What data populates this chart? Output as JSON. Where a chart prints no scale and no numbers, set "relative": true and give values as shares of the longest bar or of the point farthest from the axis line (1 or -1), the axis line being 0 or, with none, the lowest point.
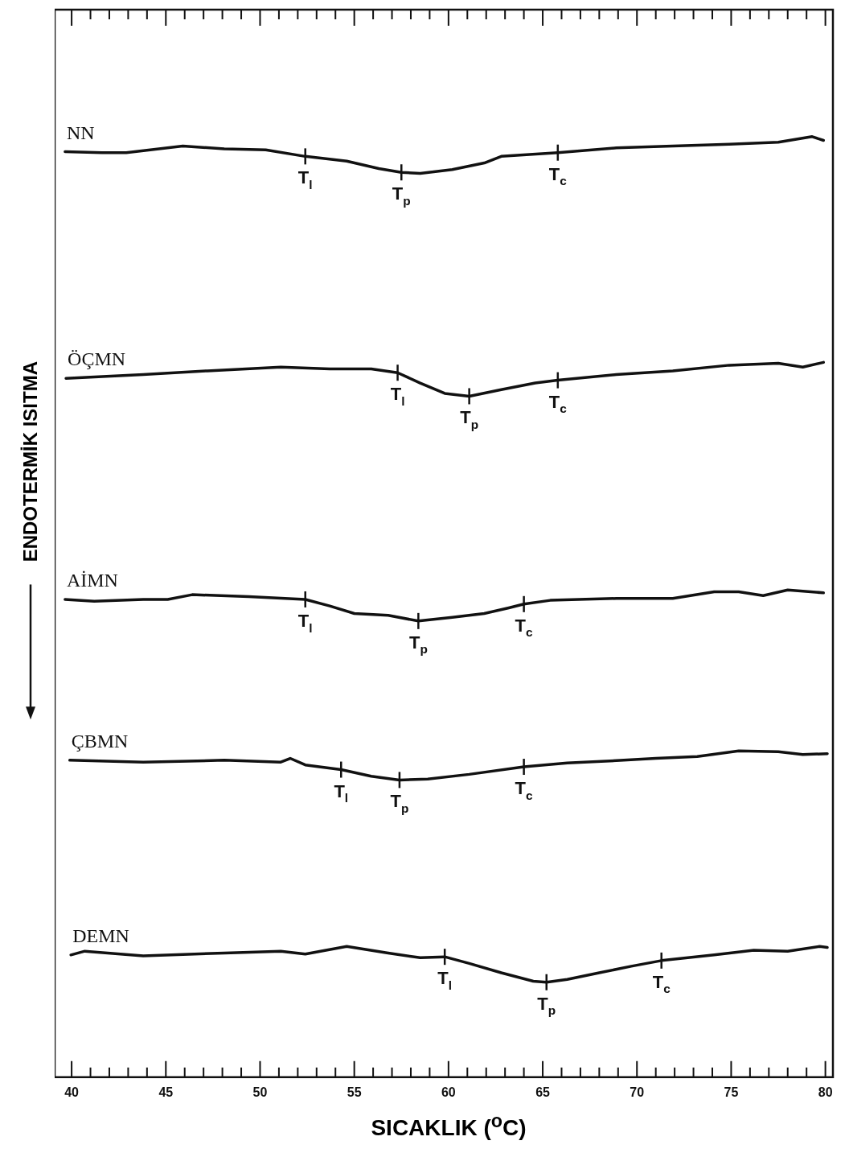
{
  "chart_data": {
    "type": "line",
    "relative": true,
    "xlabel": "SICAKLIK  ($^{o}$C)",
    "ylabel": "ENDOTERMİK ISITMA",
    "xlim": [
      39.1,
      80.4
    ],
    "xticks": [
      40,
      {
        "value": 41,
        "label": null
      },
      {
        "value": 42,
        "label": null
      },
      {
        "value": 43,
        "label": null
      },
      {
        "value": 44,
        "label": null
      },
      45,
      {
        "value": 46,
        "label": null
      },
      {
        "value": 47,
        "label": null
      },
      {
        "value": 48,
        "label": null
      },
      {
        "value": 49,
        "label": null
      },
      50,
      {
        "value": 51,
        "label": null
      },
      {
        "value": 52,
        "label": null
      },
      {
        "value": 53,
        "label": null
      },
      {
        "value": 54,
        "label": null
      },
      55,
      {
        "value": 56,
        "label": null
      },
      {
        "value": 57,
        "label": null
      },
      {
        "value": 58,
        "label": null
      },
      {
        "value": 59,
        "label": null
      },
      60,
      {
        "value": 61,
        "label": null
      },
      {
        "value": 62,
        "label": null
      },
      {
        "value": 63,
        "label": null
      },
      {
        "value": 64,
        "label": null
      },
      65,
      {
        "value": 66,
        "label": null
      },
      {
        "value": 67,
        "label": null
      },
      {
        "value": 68,
        "label": null
      },
      {
        "value": 69,
        "label": null
      },
      70,
      {
        "value": 71,
        "label": null
      },
      {
        "value": 72,
        "label": null
      },
      {
        "value": 73,
        "label": null
      },
      {
        "value": 74,
        "label": null
      },
      75,
      {
        "value": 76,
        "label": null
      },
      {
        "value": 77,
        "label": null
      },
      {
        "value": 78,
        "label": null
      },
      {
        "value": 79,
        "label": null
      },
      80
    ],
    "grid": false,
    "legend": false,
    "marker": "none",
    "line_style": "solid",
    "series": [
      {
        "name": "NN",
        "color": "#111111",
        "x": [
          39.65,
          41.6,
          42.9,
          45.9,
          48.1,
          50.3,
          52.4,
          54.6,
          56.3,
          57.5,
          58.5,
          60.2,
          61.9,
          62.8,
          65.8,
          68.9,
          71.9,
          74.9,
          77.5,
          79.3,
          79.9
        ],
        "values": [
          0.984,
          0.983,
          0.983,
          0.99,
          0.987,
          0.986,
          0.979,
          0.974,
          0.966,
          0.962,
          0.961,
          0.965,
          0.972,
          0.979,
          0.983,
          0.988,
          0.99,
          0.992,
          0.994,
          1,
          0.996
        ]
      },
      {
        "name": "ÖÇMN",
        "color": "#111111",
        "x": [
          39.7,
          43.8,
          47.2,
          51.1,
          53.7,
          55.9,
          57.3,
          58.5,
          59.8,
          61.1,
          62.8,
          64.6,
          65.8,
          68.9,
          71.9,
          74.9,
          77.5,
          78.8,
          79.9
        ],
        "values": [
          0.743,
          0.747,
          0.751,
          0.755,
          0.753,
          0.753,
          0.749,
          0.738,
          0.727,
          0.724,
          0.731,
          0.738,
          0.741,
          0.747,
          0.751,
          0.757,
          0.759,
          0.755,
          0.76
        ]
      },
      {
        "name": "AİMN",
        "color": "#111111",
        "x": [
          39.65,
          41.2,
          43.8,
          45.1,
          46.4,
          49.4,
          52.4,
          53.7,
          55,
          56.8,
          58.4,
          60.2,
          61.9,
          63.2,
          64,
          65.4,
          68.9,
          71.9,
          74.1,
          75.4,
          76.7,
          78,
          79.9
        ],
        "values": [
          0.508,
          0.506,
          0.508,
          0.508,
          0.513,
          0.511,
          0.508,
          0.501,
          0.493,
          0.491,
          0.485,
          0.489,
          0.493,
          0.499,
          0.503,
          0.507,
          0.509,
          0.509,
          0.516,
          0.516,
          0.512,
          0.518,
          0.515
        ]
      },
      {
        "name": "ÇBMN",
        "color": "#111111",
        "x": [
          39.9,
          43.8,
          48.1,
          51.1,
          51.6,
          52.4,
          54.3,
          55.9,
          57.4,
          58.9,
          61.1,
          64,
          66.3,
          69.3,
          71,
          73.2,
          75.4,
          77.5,
          78.8,
          80.1
        ],
        "values": [
          0.337,
          0.335,
          0.337,
          0.335,
          0.339,
          0.332,
          0.327,
          0.32,
          0.316,
          0.317,
          0.322,
          0.33,
          0.334,
          0.337,
          0.339,
          0.341,
          0.347,
          0.346,
          0.343,
          0.344
        ]
      },
      {
        "name": "DEMN",
        "color": "#111111",
        "x": [
          39.96,
          40.7,
          43.8,
          48.1,
          51.1,
          52.4,
          54.6,
          56.8,
          58.5,
          59.8,
          61.1,
          62.8,
          64.5,
          65.2,
          66.3,
          68,
          69.7,
          71.3,
          74.1,
          76.2,
          78,
          79.7,
          80.1
        ],
        "values": [
          0.13,
          0.134,
          0.129,
          0.132,
          0.134,
          0.131,
          0.139,
          0.132,
          0.127,
          0.128,
          0.121,
          0.111,
          0.102,
          0.101,
          0.104,
          0.111,
          0.118,
          0.124,
          0.13,
          0.135,
          0.134,
          0.139,
          0.138
        ]
      }
    ],
    "annotations": [
      {
        "text": "T$_{l}$",
        "x": 52.4,
        "y": 0.979
      },
      {
        "text": "T$_{p}$",
        "x": 57.5,
        "y": 0.962
      },
      {
        "text": "T$_{c}$",
        "x": 65.8,
        "y": 0.983
      },
      {
        "text": "T$_{l}$",
        "x": 57.3,
        "y": 0.749
      },
      {
        "text": "T$_{p}$",
        "x": 61.1,
        "y": 0.724
      },
      {
        "text": "T$_{c}$",
        "x": 65.8,
        "y": 0.741
      },
      {
        "text": "T$_{l}$",
        "x": 52.4,
        "y": 0.508
      },
      {
        "text": "T$_{p}$",
        "x": 58.4,
        "y": 0.485
      },
      {
        "text": "T$_{c}$",
        "x": 64,
        "y": 0.503
      },
      {
        "text": "T$_{l}$",
        "x": 54.3,
        "y": 0.327
      },
      {
        "text": "T$_{p}$",
        "x": 57.4,
        "y": 0.316
      },
      {
        "text": "T$_{c}$",
        "x": 64,
        "y": 0.33
      },
      {
        "text": "T$_{l}$",
        "x": 59.8,
        "y": 0.128
      },
      {
        "text": "T$_{p}$",
        "x": 65.2,
        "y": 0.101
      },
      {
        "text": "T$_{c}$",
        "x": 71.3,
        "y": 0.124
      }
    ]
  }
}
